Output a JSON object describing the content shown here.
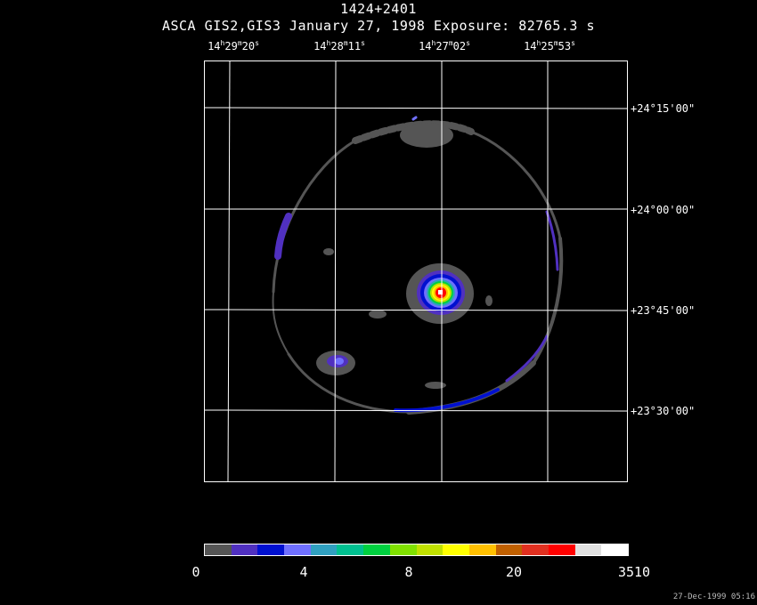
{
  "header": {
    "title": "1424+2401",
    "subtitle": "ASCA GIS2,GIS3 January 27, 1998 Exposure: 82765.3 s"
  },
  "ra_labels": [
    {
      "h": "14",
      "m": "29",
      "s": "20"
    },
    {
      "h": "14",
      "m": "28",
      "s": "11"
    },
    {
      "h": "14",
      "m": "27",
      "s": "02"
    },
    {
      "h": "14",
      "m": "25",
      "s": "53"
    }
  ],
  "dec_labels": [
    "+24°15'00\"",
    "+24°00'00\"",
    "+23°45'00\"",
    "+23°30'00\""
  ],
  "colorbar": {
    "colors": [
      "#555555",
      "#5030c0",
      "#0010d0",
      "#7070ff",
      "#30a0c0",
      "#00c090",
      "#00d040",
      "#80e000",
      "#c0e000",
      "#ffff00",
      "#ffc000",
      "#c06000",
      "#e03020",
      "#ff0000",
      "#e0e0e0",
      "#ffffff"
    ],
    "labels": [
      "0",
      "4",
      "8",
      "20",
      "3510"
    ]
  },
  "timestamp": "27-Dec-1999 05:16"
}
